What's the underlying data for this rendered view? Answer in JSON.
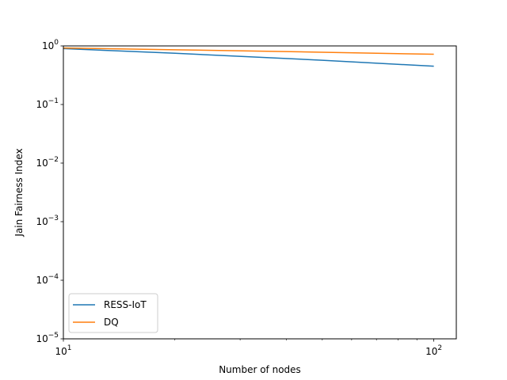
{
  "chart_data": {
    "type": "line",
    "xlabel": "Number of nodes",
    "ylabel": "Jain Fairness Index",
    "xscale": "log",
    "yscale": "log",
    "xlim": [
      10,
      115
    ],
    "ylim": [
      1e-05,
      1
    ],
    "grid": false,
    "legend_position": "lower-left",
    "x_ticks": [
      {
        "value": 10,
        "base": "10",
        "exp": "1"
      },
      {
        "value": 100,
        "base": "10",
        "exp": "2"
      }
    ],
    "y_ticks": [
      {
        "value": 1,
        "base": "10",
        "exp": "0"
      },
      {
        "value": 0.1,
        "base": "10",
        "exp": "−1"
      },
      {
        "value": 0.01,
        "base": "10",
        "exp": "−2"
      },
      {
        "value": 0.001,
        "base": "10",
        "exp": "−3"
      },
      {
        "value": 0.0001,
        "base": "10",
        "exp": "−4"
      },
      {
        "value": 1e-05,
        "base": "10",
        "exp": "−5"
      }
    ],
    "series": [
      {
        "name": "RESS-IoT",
        "color": "#1f77b4",
        "x": [
          10,
          20,
          50,
          100
        ],
        "y": [
          0.9,
          0.75,
          0.57,
          0.45
        ]
      },
      {
        "name": "DQ",
        "color": "#ff7f0e",
        "x": [
          10,
          20,
          50,
          100
        ],
        "y": [
          0.92,
          0.86,
          0.78,
          0.72
        ]
      }
    ]
  }
}
